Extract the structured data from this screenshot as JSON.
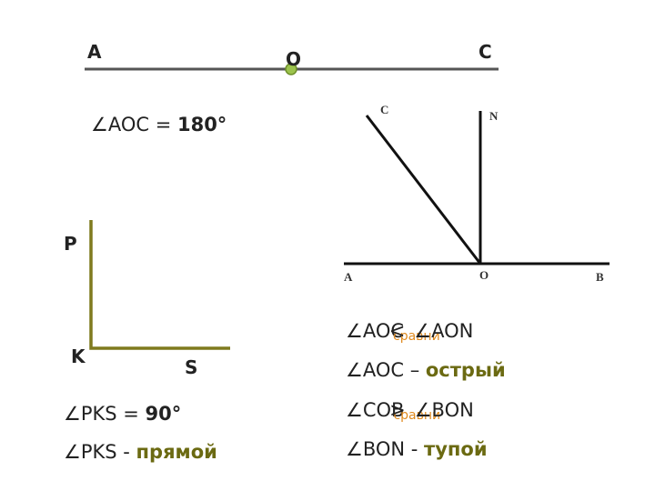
{
  "straight_angle": {
    "labels": {
      "a": "A",
      "o": "O",
      "c": "C"
    },
    "formula": {
      "name": "∠AOC = ",
      "value": "180°"
    }
  },
  "right_angle": {
    "labels": {
      "p": "P",
      "k": "K",
      "s": "S"
    },
    "measure": {
      "name": "∠PKS = ",
      "value": "90°"
    },
    "kind": {
      "name": "∠PKS - ",
      "value": "прямой"
    }
  },
  "figure": {
    "labels": {
      "c": "C",
      "n": "N",
      "a": "A",
      "o": "O",
      "b": "B"
    }
  },
  "comparisons": [
    {
      "left": "∠AOC",
      "note": "сравни",
      "sign": "<",
      "right": "∠AON"
    },
    {
      "left": "∠COB",
      "note": "сравни",
      "sign": ">",
      "right": "∠BON"
    }
  ],
  "kinds": [
    {
      "name": "∠AOC – ",
      "value": "острый"
    },
    {
      "name": "∠BON - ",
      "value": "тупой"
    }
  ]
}
